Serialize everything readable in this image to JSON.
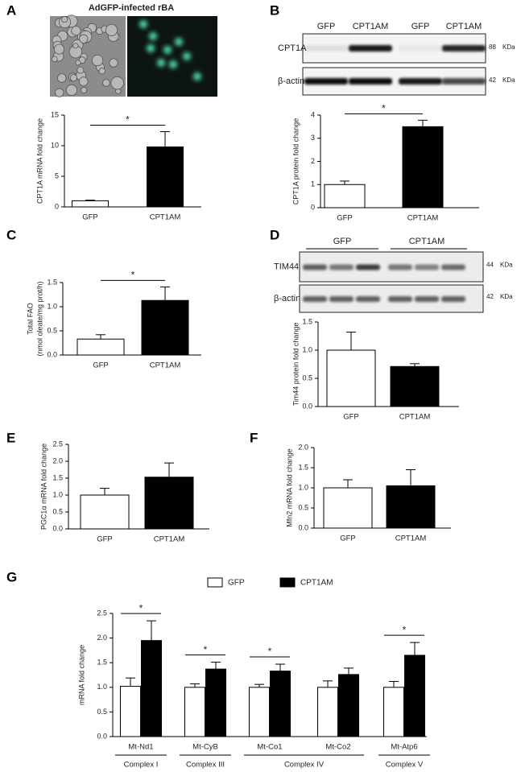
{
  "panel_labels": [
    "A",
    "B",
    "C",
    "D",
    "E",
    "F",
    "G"
  ],
  "image_title": "AdGFP-infected rBA",
  "blot_b": {
    "lanes": [
      "GFP",
      "CPT1AM",
      "GFP",
      "CPT1AM"
    ],
    "rows": [
      {
        "label": "CPT1A",
        "size": "88",
        "unit": "KDa"
      },
      {
        "label": "β-actin",
        "size": "42",
        "unit": "KDa"
      }
    ]
  },
  "blot_d": {
    "groups": [
      "GFP",
      "CPT1AM"
    ],
    "rows": [
      {
        "label": "TIM44",
        "size": "44",
        "unit": "KDa"
      },
      {
        "label": "β-actin",
        "size": "42",
        "unit": "KDa"
      }
    ]
  },
  "chart_data": [
    {
      "type": "bar",
      "ylabel": "CPT1A mRNA fold change",
      "categories": [
        "GFP",
        "CPT1AM"
      ],
      "values": [
        1.0,
        9.8
      ],
      "errors": [
        0.1,
        2.5
      ],
      "colors": [
        "#ffffff",
        "#000000"
      ],
      "ylim": [
        0,
        15
      ],
      "yticks": [
        0,
        5,
        10,
        15
      ],
      "significance": "*"
    },
    {
      "type": "bar",
      "ylabel": "CPT1A protein fold change",
      "categories": [
        "GFP",
        "CPT1AM"
      ],
      "values": [
        1.0,
        3.5
      ],
      "errors": [
        0.15,
        0.28
      ],
      "colors": [
        "#ffffff",
        "#000000"
      ],
      "ylim": [
        0,
        4
      ],
      "yticks": [
        0,
        1,
        2,
        3,
        4
      ],
      "significance": "*"
    },
    {
      "type": "bar",
      "ylabel": [
        "Total FAO",
        "(nmol oleate/mg prot/h)"
      ],
      "categories": [
        "GFP",
        "CPT1AM"
      ],
      "values": [
        0.33,
        1.13
      ],
      "errors": [
        0.09,
        0.28
      ],
      "colors": [
        "#ffffff",
        "#000000"
      ],
      "ylim": [
        0,
        1.5
      ],
      "yticks": [
        {
          "value": 0,
          "label": "0.0"
        },
        0.5,
        {
          "value": 1,
          "label": "1.0"
        },
        1.5
      ],
      "significance": "*"
    },
    {
      "type": "bar",
      "ylabel": "Tim44 protein fold change",
      "categories": [
        "GFP",
        "CPT1AM"
      ],
      "values": [
        1.0,
        0.71
      ],
      "errors": [
        0.32,
        0.05
      ],
      "colors": [
        "#ffffff",
        "#000000"
      ],
      "ylim": [
        0,
        1.5
      ],
      "yticks": [
        {
          "value": 0,
          "label": "0.0"
        },
        0.5,
        {
          "value": 1,
          "label": "1.0"
        },
        1.5
      ]
    },
    {
      "type": "bar",
      "ylabel": "PGC1α mRNA fold change",
      "categories": [
        "GFP",
        "CPT1AM"
      ],
      "values": [
        1.0,
        1.53
      ],
      "errors": [
        0.2,
        0.42
      ],
      "colors": [
        "#ffffff",
        "#000000"
      ],
      "ylim": [
        0,
        2.5
      ],
      "yticks": [
        {
          "value": 0,
          "label": "0.0"
        },
        0.5,
        {
          "value": 1,
          "label": "1.0"
        },
        1.5,
        {
          "value": 2,
          "label": "2.0"
        },
        2.5
      ]
    },
    {
      "type": "bar",
      "ylabel": "Mfn2 mRNA fold change",
      "categories": [
        "GFP",
        "CPT1AM"
      ],
      "values": [
        1.0,
        1.05
      ],
      "errors": [
        0.2,
        0.4
      ],
      "colors": [
        "#ffffff",
        "#000000"
      ],
      "ylim": [
        0,
        2.0
      ],
      "yticks": [
        {
          "value": 0,
          "label": "0.0"
        },
        0.5,
        {
          "value": 1,
          "label": "1.0"
        },
        1.5,
        {
          "value": 2,
          "label": "2.0"
        }
      ]
    },
    {
      "type": "bar",
      "ylabel": "mRNA fold change",
      "categories": [
        "Mt-Nd1",
        "Mt-CyB",
        "Mt-Co1",
        "Mt-Co2",
        "Mt-Atp6"
      ],
      "series": [
        {
          "name": "GFP",
          "color": "#ffffff",
          "values": [
            1.02,
            1.0,
            1.0,
            1.0,
            1.0
          ],
          "errors": [
            0.17,
            0.07,
            0.06,
            0.13,
            0.12
          ]
        },
        {
          "name": "CPT1AM",
          "color": "#000000",
          "values": [
            1.95,
            1.37,
            1.33,
            1.26,
            1.65
          ],
          "errors": [
            0.4,
            0.14,
            0.14,
            0.13,
            0.26
          ]
        }
      ],
      "ylim": [
        0,
        2.5
      ],
      "yticks": [
        {
          "value": 0,
          "label": "0.0"
        },
        0.5,
        {
          "value": 1,
          "label": "1.0"
        },
        1.5,
        {
          "value": 2,
          "label": "2.0"
        },
        2.5
      ],
      "significance": [
        "*",
        "*",
        "*",
        null,
        "*"
      ],
      "groups": [
        "Complex I",
        "Complex III",
        "Complex IV",
        "Complex V"
      ]
    }
  ]
}
